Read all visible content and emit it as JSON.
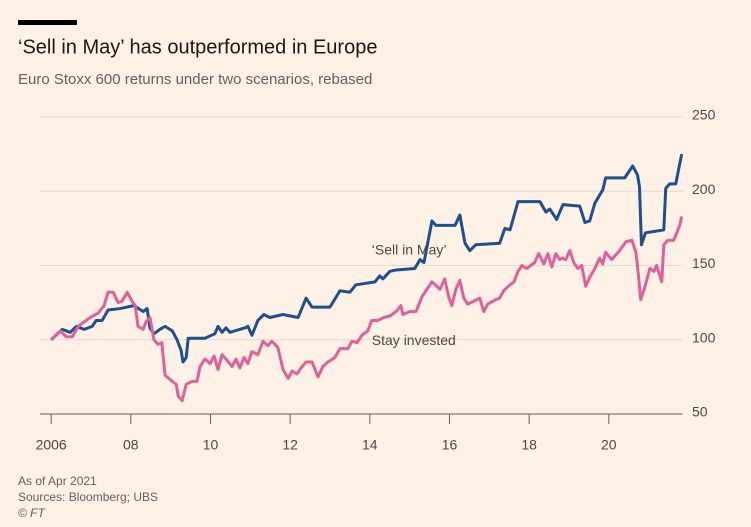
{
  "chart_data": {
    "type": "line",
    "title": "‘Sell in May’ has outperformed in Europe",
    "subtitle": "Euro Stoxx 600 returns under two scenarios, rebased",
    "notes": [
      "As of Apr 2021",
      "Sources: Bloomberg; UBS",
      "© FT"
    ],
    "annotations": [
      {
        "text": "‘Sell in May’",
        "x": 2014.05,
        "y": 160
      },
      {
        "text": "Stay invested",
        "x": 2014.05,
        "y": 99
      }
    ],
    "xlim": [
      2005.72,
      2021.85
    ],
    "xticks": [
      2006,
      {
        "value": 2008,
        "label": "08"
      },
      {
        "value": 2010,
        "label": "10"
      },
      {
        "value": 2012,
        "label": "12"
      },
      {
        "value": 2014,
        "label": "14"
      },
      {
        "value": 2016,
        "label": "16"
      },
      {
        "value": 2018,
        "label": "18"
      },
      {
        "value": 2020,
        "label": "20"
      }
    ],
    "ylim": [
      50,
      250
    ],
    "yticks": [
      50,
      100,
      150,
      200,
      250
    ],
    "grid": true,
    "series": [
      {
        "name": "‘Sell in May’",
        "color": "#1e4f8f",
        "x": [
          2006.0,
          2006.28,
          2006.48,
          2006.63,
          2006.83,
          2007.03,
          2007.13,
          2007.28,
          2007.43,
          2007.73,
          2008.08,
          2008.31,
          2008.41,
          2008.48,
          2008.58,
          2008.73,
          2008.86,
          2009.04,
          2009.16,
          2009.26,
          2009.31,
          2009.39,
          2009.44,
          2009.86,
          2010.11,
          2010.19,
          2010.29,
          2010.39,
          2010.49,
          2010.87,
          2010.94,
          2011.04,
          2011.19,
          2011.34,
          2011.49,
          2011.82,
          2012.2,
          2012.4,
          2012.55,
          2013.0,
          2013.25,
          2013.5,
          2013.65,
          2014.13,
          2014.25,
          2014.33,
          2014.5,
          2014.66,
          2015.13,
          2015.26,
          2015.36,
          2015.56,
          2015.66,
          2016.14,
          2016.26,
          2016.39,
          2016.51,
          2016.66,
          2017.26,
          2017.39,
          2017.52,
          2017.72,
          2018.27,
          2018.42,
          2018.52,
          2018.69,
          2018.85,
          2019.27,
          2019.4,
          2019.52,
          2019.65,
          2019.85,
          2019.92,
          2020.4,
          2020.6,
          2020.72,
          2020.77,
          2020.82,
          2020.92,
          2021.38,
          2021.43,
          2021.53,
          2021.68,
          2021.83
        ],
        "values": [
          100,
          107,
          105,
          109,
          107,
          109,
          113,
          113,
          120,
          121,
          123,
          119,
          121,
          108,
          104,
          107,
          109,
          106,
          100,
          93,
          85,
          88,
          101,
          101,
          104,
          109,
          105,
          108,
          105,
          108,
          109,
          103,
          113,
          117,
          115,
          117,
          115,
          128,
          122,
          122,
          133,
          132,
          137,
          139,
          143,
          141,
          146,
          147,
          148,
          154,
          152,
          180,
          177,
          177,
          184,
          165,
          160,
          164,
          165,
          175,
          174,
          193,
          193,
          186,
          188,
          181,
          191,
          190,
          179,
          180,
          192,
          201,
          209,
          209,
          217,
          211,
          203,
          164,
          172,
          174,
          202,
          205,
          205,
          225
        ]
      },
      {
        "name": "Stay invested",
        "color": "#e0609a",
        "x": [
          2006.0,
          2006.23,
          2006.38,
          2006.53,
          2006.68,
          2006.98,
          2007.18,
          2007.33,
          2007.43,
          2007.56,
          2007.68,
          2007.78,
          2007.91,
          2008.03,
          2008.11,
          2008.18,
          2008.31,
          2008.38,
          2008.48,
          2008.58,
          2008.68,
          2008.78,
          2008.86,
          2009.04,
          2009.14,
          2009.19,
          2009.29,
          2009.39,
          2009.54,
          2009.66,
          2009.74,
          2009.86,
          2009.99,
          2010.09,
          2010.19,
          2010.29,
          2010.42,
          2010.54,
          2010.64,
          2010.74,
          2010.84,
          2010.94,
          2011.04,
          2011.19,
          2011.32,
          2011.44,
          2011.54,
          2011.69,
          2011.82,
          2011.95,
          2012.05,
          2012.17,
          2012.27,
          2012.4,
          2012.55,
          2012.7,
          2012.82,
          2012.95,
          2013.12,
          2013.25,
          2013.45,
          2013.55,
          2013.68,
          2013.8,
          2013.95,
          2014.05,
          2014.2,
          2014.35,
          2014.5,
          2014.66,
          2014.78,
          2014.83,
          2015.01,
          2015.16,
          2015.31,
          2015.46,
          2015.56,
          2015.76,
          2015.88,
          2015.98,
          2016.06,
          2016.16,
          2016.26,
          2016.36,
          2016.46,
          2016.61,
          2016.76,
          2016.86,
          2016.96,
          2017.16,
          2017.26,
          2017.36,
          2017.52,
          2017.62,
          2017.72,
          2017.82,
          2017.94,
          2018.14,
          2018.24,
          2018.37,
          2018.47,
          2018.57,
          2018.67,
          2018.77,
          2018.84,
          2018.92,
          2019.02,
          2019.12,
          2019.22,
          2019.32,
          2019.42,
          2019.52,
          2019.65,
          2019.77,
          2019.85,
          2019.92,
          2020.07,
          2020.27,
          2020.43,
          2020.58,
          2020.68,
          2020.75,
          2020.8,
          2020.9,
          2021.03,
          2021.13,
          2021.2,
          2021.33,
          2021.38,
          2021.48,
          2021.63,
          2021.78,
          2021.83
        ],
        "values": [
          100,
          106,
          102,
          102,
          109,
          115,
          118,
          123,
          132,
          132,
          125,
          126,
          132,
          126,
          123,
          109,
          107,
          112,
          115,
          100,
          97,
          98,
          76,
          72,
          70,
          62,
          59,
          70,
          72,
          72,
          82,
          87,
          84,
          89,
          80,
          90,
          86,
          82,
          87,
          81,
          88,
          84,
          92,
          90,
          99,
          96,
          99,
          95,
          80,
          74,
          79,
          77,
          81,
          85,
          85,
          75,
          82,
          85,
          88,
          94,
          94,
          99,
          98,
          103,
          106,
          113,
          113,
          115,
          116,
          119,
          123,
          117,
          119,
          119,
          129,
          135,
          139,
          134,
          141,
          129,
          123,
          134,
          140,
          128,
          124,
          126,
          128,
          119,
          124,
          127,
          128,
          133,
          137,
          139,
          146,
          150,
          148,
          152,
          158,
          151,
          158,
          149,
          158,
          154,
          155,
          154,
          160,
          152,
          148,
          150,
          136,
          142,
          148,
          155,
          151,
          159,
          154,
          160,
          166,
          167,
          159,
          142,
          127,
          135,
          148,
          146,
          150,
          139,
          164,
          167,
          167,
          177,
          183
        ]
      }
    ]
  }
}
